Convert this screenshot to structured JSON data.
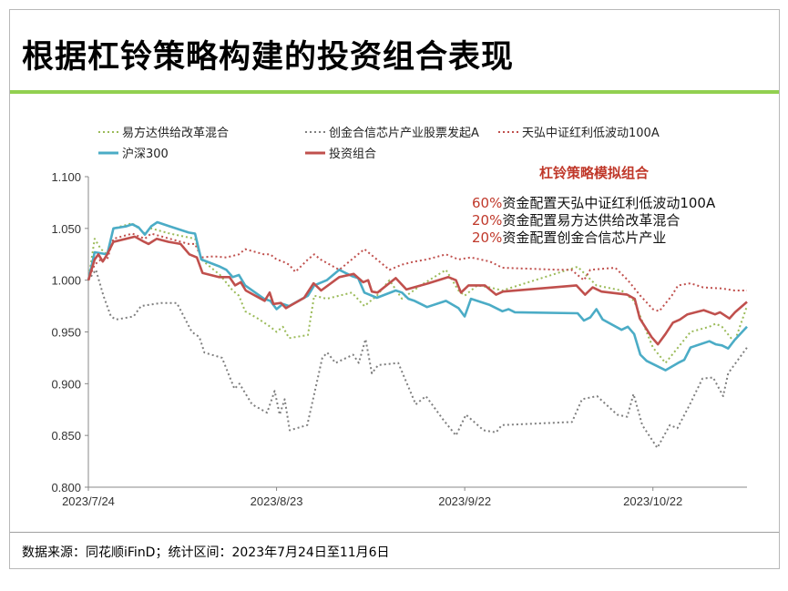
{
  "title": "根据杠铃策略构建的投资组合表现",
  "footer": "数据来源：同花顺iFinD；统计区间：2023年7月24日至11月6日",
  "annotation": {
    "title": "杠铃策略模拟组合",
    "lines": [
      {
        "pct": "60%",
        "text": "资金配置天弘中证红利低波动100A"
      },
      {
        "pct": "20%",
        "text": "资金配置易方达供给改革混合"
      },
      {
        "pct": "20%",
        "text": "资金配置创金合信芯片产业"
      }
    ]
  },
  "chart_data": {
    "type": "line",
    "title": "",
    "xlabel": "",
    "ylabel": "",
    "x_unit": "days since 2023/7/24",
    "xlim": [
      0,
      105
    ],
    "ylim": [
      0.8,
      1.1
    ],
    "yticks": [
      "0.800",
      "0.850",
      "0.900",
      "0.950",
      "1.000",
      "1.050",
      "1.100"
    ],
    "ytick_values": [
      0.8,
      0.85,
      0.9,
      0.95,
      1.0,
      1.05,
      1.1
    ],
    "xticks": [
      "2023/7/24",
      "2023/8/23",
      "2023/9/22",
      "2023/10/22"
    ],
    "xtick_values": [
      0,
      30,
      60,
      90
    ],
    "grid": false,
    "legend_placement": "top",
    "series": [
      {
        "name": "易方达供给改革混合",
        "color": "#9bbb59",
        "style": "dotted",
        "x": [
          0,
          1,
          2,
          3,
          4,
          7,
          8,
          9,
          10,
          13,
          17,
          18,
          21,
          23,
          24,
          25,
          27,
          29,
          30,
          31,
          32,
          35,
          36,
          38,
          42,
          44,
          46,
          48,
          50,
          53,
          57,
          59,
          60,
          62,
          64,
          66,
          78,
          81,
          85,
          87,
          88,
          90,
          92,
          94,
          96,
          99,
          100,
          101,
          103,
          105
        ],
        "y": [
          1.0,
          1.04,
          1.03,
          1.025,
          1.05,
          1.055,
          1.05,
          1.045,
          1.05,
          1.045,
          1.04,
          1.02,
          1.005,
          0.99,
          0.985,
          0.97,
          0.963,
          0.955,
          0.95,
          0.955,
          0.944,
          0.947,
          0.985,
          0.982,
          0.988,
          0.975,
          0.985,
          1.0,
          0.982,
          0.995,
          1.01,
          0.99,
          0.985,
          0.995,
          0.993,
          0.99,
          1.013,
          0.995,
          0.99,
          0.98,
          0.965,
          0.935,
          0.92,
          0.935,
          0.95,
          0.955,
          0.958,
          0.955,
          0.94,
          0.975
        ]
      },
      {
        "name": "创金合信芯片产业股票发起A",
        "color": "#7f7f7f",
        "style": "dotted",
        "x": [
          0,
          1.2,
          2.4,
          3.6,
          4.4,
          7.2,
          8.4,
          11.6,
          14.1,
          16.5,
          17.7,
          18.5,
          21.3,
          23.3,
          24.1,
          26.1,
          28.5,
          29.7,
          30.5,
          31.3,
          32.1,
          34.9,
          37.3,
          38.1,
          39.4,
          42.2,
          43.1,
          44.2,
          45.2,
          46.2,
          49.4,
          52.2,
          53.8,
          56.6,
          58.6,
          60.2,
          63,
          65,
          65.9,
          77.1,
          78.7,
          81.1,
          84.3,
          85.9,
          86.9,
          88.3,
          90.7,
          92.7,
          93.9,
          95.9,
          97.9,
          99.6,
          101.2,
          102,
          105
        ],
        "y": [
          1.0,
          1.01,
          0.985,
          0.965,
          0.962,
          0.965,
          0.975,
          0.978,
          0.978,
          0.95,
          0.945,
          0.93,
          0.925,
          0.895,
          0.9,
          0.88,
          0.872,
          0.893,
          0.87,
          0.885,
          0.855,
          0.86,
          0.925,
          0.93,
          0.92,
          0.928,
          0.92,
          0.943,
          0.91,
          0.918,
          0.92,
          0.88,
          0.888,
          0.865,
          0.85,
          0.87,
          0.855,
          0.853,
          0.86,
          0.863,
          0.885,
          0.888,
          0.87,
          0.868,
          0.89,
          0.86,
          0.838,
          0.86,
          0.857,
          0.88,
          0.905,
          0.906,
          0.888,
          0.91,
          0.935
        ]
      },
      {
        "name": "天弘中证红利低波动100A",
        "color": "#c0504d",
        "style": "dotted",
        "x": [
          0,
          1,
          2,
          3,
          4,
          7,
          9,
          10,
          13,
          16,
          17,
          18,
          20,
          22,
          24,
          25,
          28,
          29,
          30,
          31,
          32,
          33,
          35,
          36,
          37,
          40,
          42,
          44,
          46,
          48,
          50,
          52,
          54,
          57,
          59,
          61,
          64,
          66,
          75,
          77,
          79,
          80,
          84,
          86,
          88,
          90,
          91,
          93,
          94,
          96,
          98,
          101,
          103,
          105
        ],
        "y": [
          1.0,
          1.015,
          1.02,
          1.02,
          1.04,
          1.045,
          1.04,
          1.045,
          1.04,
          1.035,
          1.035,
          1.022,
          1.023,
          1.022,
          1.025,
          1.03,
          1.025,
          1.025,
          1.02,
          1.018,
          1.015,
          1.008,
          1.02,
          1.025,
          1.02,
          1.01,
          1.02,
          1.03,
          1.02,
          1.01,
          1.015,
          1.018,
          1.02,
          1.025,
          1.02,
          1.022,
          1.018,
          1.012,
          1.01,
          1.01,
          1.0,
          1.01,
          1.012,
          1.0,
          0.985,
          0.972,
          0.97,
          0.985,
          0.995,
          0.997,
          0.993,
          0.992,
          0.99,
          0.99
        ]
      },
      {
        "name": "沪深300",
        "color": "#4bacc6",
        "style": "solid",
        "x": [
          0,
          1,
          2,
          3,
          4,
          6,
          7,
          8,
          9,
          10,
          11,
          13,
          15,
          16,
          17,
          18,
          21,
          22,
          23,
          24,
          25,
          28,
          29,
          30,
          31,
          32,
          35,
          36,
          38,
          40,
          42,
          43,
          44,
          46,
          49,
          50,
          51,
          52,
          54,
          57,
          59,
          60,
          61,
          64,
          66,
          67,
          68,
          78,
          79,
          80,
          81,
          82,
          85,
          86,
          87,
          88,
          89,
          92,
          94,
          95,
          96,
          99,
          100,
          101,
          102,
          103,
          105
        ],
        "y": [
          1.0,
          1.027,
          1.026,
          1.025,
          1.05,
          1.052,
          1.054,
          1.051,
          1.044,
          1.052,
          1.056,
          1.052,
          1.048,
          1.046,
          1.045,
          1.02,
          1.013,
          1.01,
          1.003,
          1.005,
          0.995,
          0.982,
          0.98,
          0.972,
          0.977,
          0.975,
          0.985,
          0.995,
          1.0,
          1.01,
          1.004,
          1.002,
          0.988,
          0.983,
          0.99,
          0.988,
          0.982,
          0.98,
          0.974,
          0.98,
          0.973,
          0.965,
          0.982,
          0.976,
          0.97,
          0.972,
          0.969,
          0.968,
          0.961,
          0.964,
          0.972,
          0.962,
          0.952,
          0.955,
          0.948,
          0.928,
          0.922,
          0.913,
          0.92,
          0.923,
          0.935,
          0.941,
          0.938,
          0.937,
          0.934,
          0.942,
          0.955
        ]
      },
      {
        "name": "投资组合",
        "color": "#c0504d",
        "style": "solid",
        "x": [
          0,
          1,
          1.6,
          2.3,
          3,
          4,
          7.4,
          8.9,
          9.6,
          10.9,
          12.8,
          14.7,
          16.1,
          17.3,
          18.2,
          20.8,
          22.5,
          23.4,
          24.3,
          25.1,
          28.1,
          28.9,
          29.5,
          30.7,
          31.5,
          34.4,
          35.9,
          37.1,
          40,
          42.3,
          43.8,
          44.6,
          45.2,
          46.1,
          49,
          50.7,
          54.2,
          57.4,
          58.6,
          59.4,
          60.6,
          63.2,
          65,
          66.1,
          77.8,
          79.2,
          80.4,
          81.8,
          85.9,
          87.1,
          87.9,
          89.8,
          90.8,
          92,
          93.2,
          94.3,
          95.5,
          98.1,
          99.9,
          100.7,
          102.2,
          103.1,
          105
        ],
        "y": [
          1.0,
          1.02,
          1.025,
          1.018,
          1.025,
          1.037,
          1.042,
          1.037,
          1.035,
          1.04,
          1.037,
          1.035,
          1.025,
          1.022,
          1.007,
          1.003,
          1.003,
          0.995,
          0.998,
          0.99,
          0.98,
          0.988,
          0.977,
          0.978,
          0.973,
          0.983,
          0.997,
          0.99,
          1.003,
          1.006,
          0.998,
          1.0,
          0.989,
          0.988,
          1.002,
          0.991,
          0.997,
          1.003,
          1.0,
          0.988,
          0.995,
          0.995,
          0.986,
          0.989,
          0.995,
          0.986,
          0.993,
          0.989,
          0.986,
          0.982,
          0.963,
          0.945,
          0.938,
          0.948,
          0.959,
          0.962,
          0.967,
          0.971,
          0.967,
          0.969,
          0.963,
          0.969,
          0.979
        ]
      }
    ]
  }
}
